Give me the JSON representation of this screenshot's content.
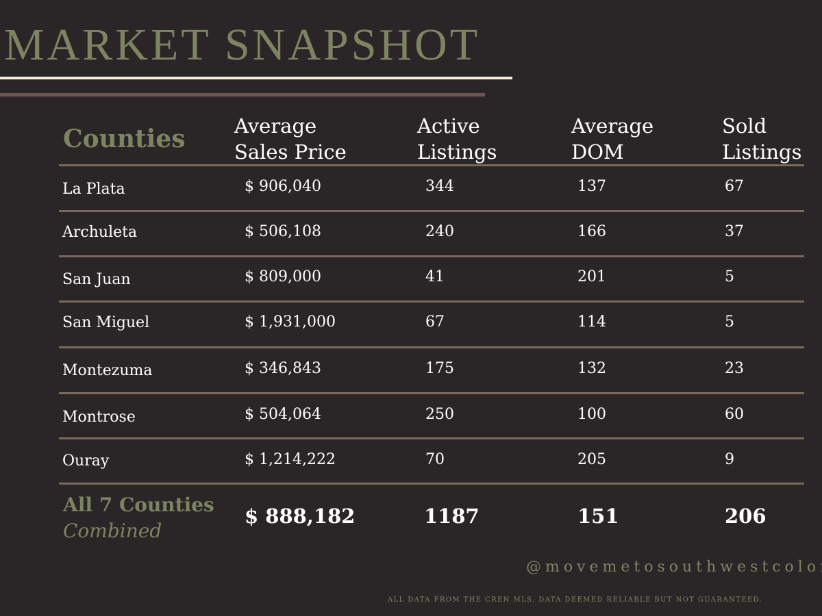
{
  "title": "MARKET SNAPSHOT",
  "colors": {
    "background": "#2a2628",
    "accent_green": "#7d8460",
    "rule_cream": "#f3ead8",
    "rule_mauve": "#6e5458",
    "divider": "#7a6a5b",
    "text": "#ffffff"
  },
  "table": {
    "headers": {
      "counties": "Counties",
      "avg_price": [
        "Average",
        "Sales Price"
      ],
      "active": [
        "Active",
        "Listings"
      ],
      "dom": [
        "Average",
        "DOM"
      ],
      "sold": [
        "Sold",
        "Listings"
      ]
    },
    "rows": [
      {
        "county": "La Plata",
        "price": "$ 906,040",
        "active": "344",
        "dom": "137",
        "sold": "67"
      },
      {
        "county": "Archuleta",
        "price": "$ 506,108",
        "active": "240",
        "dom": "166",
        "sold": "37"
      },
      {
        "county": "San Juan",
        "price": "$ 809,000",
        "active": "41",
        "dom": "201",
        "sold": "5"
      },
      {
        "county": "San Miguel",
        "price": "$ 1,931,000",
        "active": "67",
        "dom": "114",
        "sold": "5"
      },
      {
        "county": "Montezuma",
        "price": "$ 346,843",
        "active": "175",
        "dom": "132",
        "sold": "23"
      },
      {
        "county": "Montrose",
        "price": "$ 504,064",
        "active": "250",
        "dom": "100",
        "sold": "60"
      },
      {
        "county": "Ouray",
        "price": "$ 1,214,222",
        "active": "70",
        "dom": "205",
        "sold": "9"
      }
    ],
    "total": {
      "label": "All 7 Counties",
      "sublabel": "Combined",
      "price": "$ 888,182",
      "active": "1187",
      "dom": "151",
      "sold": "206"
    }
  },
  "handle": "@movemetosouthwestcolorado",
  "footnote": "ALL DATA FROM THE CREN MLS. DATA DEEMED RELIABLE BUT NOT GUARANTEED."
}
